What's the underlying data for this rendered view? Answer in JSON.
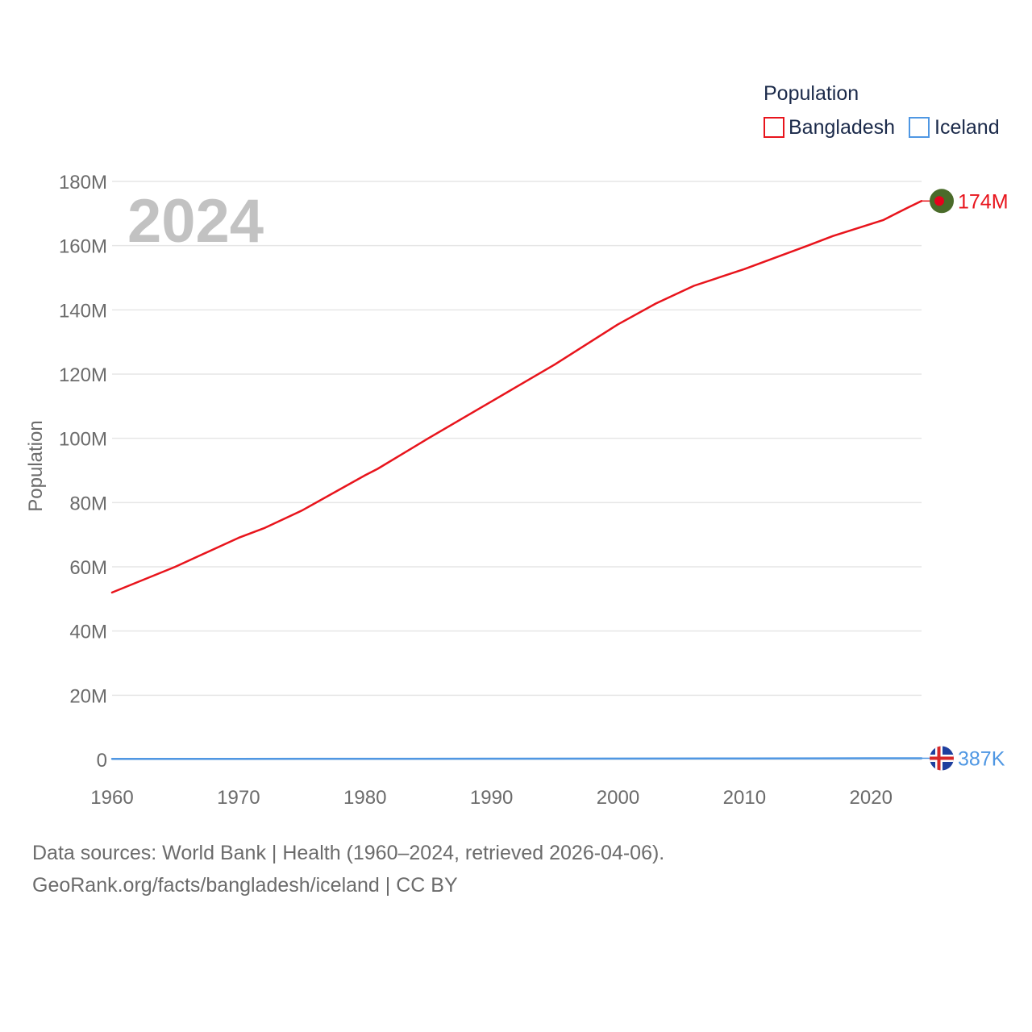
{
  "chart_data": {
    "type": "line",
    "ylabel": "Population",
    "ylim": [
      0,
      180000000
    ],
    "xlim": [
      1960,
      2024
    ],
    "x_ticks": [
      "1960",
      "1970",
      "1980",
      "1990",
      "2000",
      "2010",
      "2020"
    ],
    "y_ticks": [
      "0",
      "20M",
      "40M",
      "60M",
      "80M",
      "100M",
      "120M",
      "140M",
      "160M",
      "180M"
    ],
    "year_label": "2024",
    "legend_title": "Population",
    "series": [
      {
        "name": "Bangladesh",
        "color": "#e8141c",
        "end_label": "174M",
        "flag_icon": "bangladesh-flag-icon",
        "x": [
          1960,
          1965,
          1970,
          1972,
          1975,
          1980,
          1981,
          1985,
          1990,
          1995,
          2000,
          2003,
          2006,
          2010,
          2015,
          2017,
          2021,
          2022,
          2023,
          2024
        ],
        "values": [
          52000000,
          60000000,
          69000000,
          72000000,
          77500000,
          88500000,
          90500000,
          100000000,
          111500000,
          123000000,
          135500000,
          142000000,
          147500000,
          152700000,
          160000000,
          163000000,
          168000000,
          170000000,
          172000000,
          173900000
        ]
      },
      {
        "name": "Iceland",
        "color": "#4f97e3",
        "end_label": "387K",
        "flag_icon": "iceland-flag-icon",
        "x": [
          1960,
          1970,
          1980,
          1990,
          2000,
          2010,
          2020,
          2024
        ],
        "values": [
          176000,
          204000,
          228000,
          255000,
          281000,
          318000,
          366000,
          387000
        ]
      }
    ]
  },
  "footer": {
    "line1": "Data sources: World Bank | Health (1960–2024, retrieved 2026-04-06).",
    "line2": "GeoRank.org/facts/bangladesh/iceland | CC BY"
  }
}
